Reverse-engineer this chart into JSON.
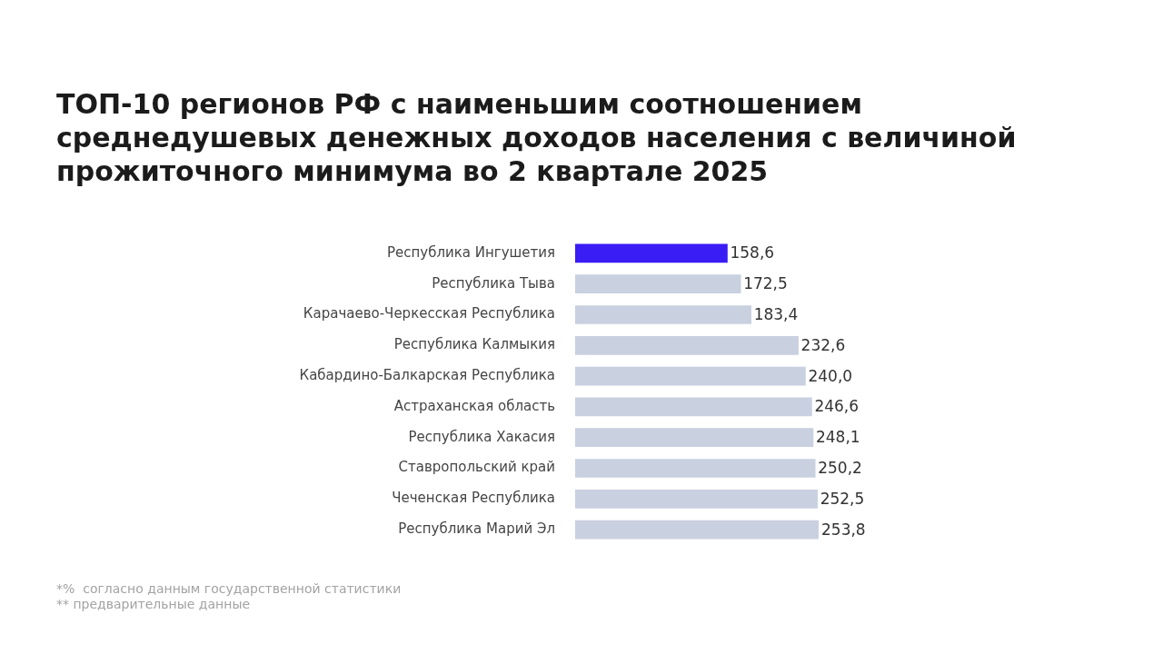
{
  "chart_data": {
    "type": "bar",
    "orientation": "horizontal",
    "title": "ТОП-10 регионов РФ с наименьшим соотношением среднедушевых денежных доходов населения с величиной прожиточного минимума во 2 квартале 2025",
    "categories": [
      "Республика Ингушетия",
      "Республика Тыва",
      "Карачаево-Черкесская Республика",
      "Республика Калмыкия",
      "Кабардино-Балкарская Республика",
      "Астраханская область",
      "Республика Хакасия",
      "Ставропольский край",
      "Чеченская Республика",
      "Республика Марий Эл"
    ],
    "values": [
      158.6,
      172.5,
      183.4,
      232.6,
      240.0,
      246.6,
      248.1,
      250.2,
      252.5,
      253.8
    ],
    "value_labels": [
      "158,6",
      "172,5",
      "183,4",
      "232,6",
      "240,0",
      "246,6",
      "248,1",
      "250,2",
      "252,5",
      "253,8"
    ],
    "colors": [
      "#3a1cf5",
      "#c9d0e0",
      "#c9d0e0",
      "#c9d0e0",
      "#c9d0e0",
      "#c9d0e0",
      "#c9d0e0",
      "#c9d0e0",
      "#c9d0e0",
      "#c9d0e0"
    ],
    "tick_labels": "y",
    "annotations": [
      "*%  согласно данным государственной статистики",
      "** предварительные данные"
    ]
  }
}
